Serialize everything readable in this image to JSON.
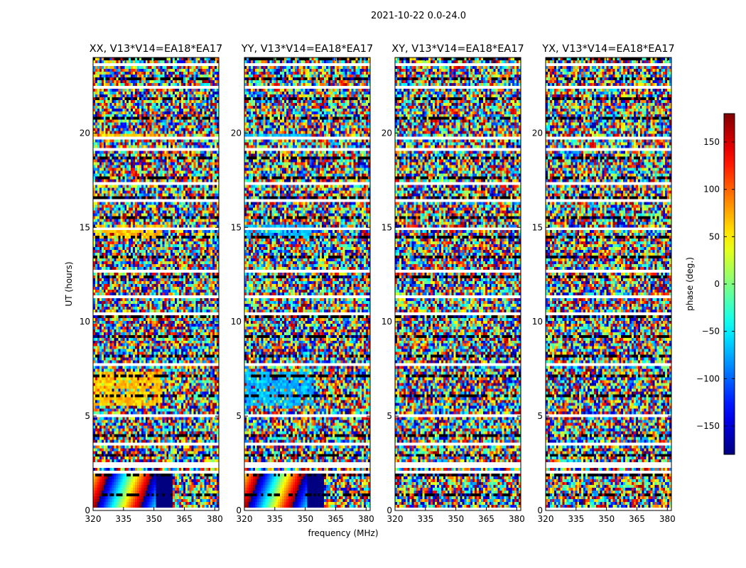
{
  "chart_data": {
    "type": "heatmap",
    "suptitle": "2021-10-22 0.0-24.0",
    "xlabel": "frequency (MHz)",
    "ylabel": "UT (hours)",
    "xlim": [
      320,
      382
    ],
    "ylim": [
      0,
      24
    ],
    "x_ticks": [
      "320",
      "335",
      "350",
      "365",
      "380"
    ],
    "x_tick_values": [
      320,
      335,
      350,
      365,
      380
    ],
    "y_ticks": [
      "0",
      "5",
      "10",
      "15",
      "20"
    ],
    "y_tick_values": [
      0,
      5,
      10,
      15,
      20
    ],
    "panels": [
      {
        "title": "XX, V13*V14=EA18*EA17",
        "polarization": "XX"
      },
      {
        "title": "YY, V13*V14=EA18*EA17",
        "polarization": "YY"
      },
      {
        "title": "XY, V13*V14=EA18*EA17",
        "polarization": "XY"
      },
      {
        "title": "YX, V13*V14=EA18*EA17",
        "polarization": "YX"
      }
    ],
    "colorbar": {
      "label": "phase (deg.)",
      "range": [
        -180,
        180
      ],
      "ticks": [
        "150",
        "100",
        "50",
        "0",
        "−50",
        "−100",
        "−150"
      ],
      "tick_values": [
        150,
        100,
        50,
        0,
        -50,
        -100,
        -150
      ],
      "colormap": "jet"
    },
    "flagged_intervals_hours": [
      [
        0.05,
        0.15
      ],
      [
        1.9,
        2.05
      ],
      [
        2.3,
        2.55
      ],
      [
        3.45,
        3.6
      ],
      [
        4.9,
        5.05
      ],
      [
        7.65,
        7.8
      ],
      [
        8.95,
        9.05
      ],
      [
        9.55,
        9.65
      ],
      [
        10.4,
        10.5
      ],
      [
        11.25,
        11.35
      ],
      [
        12.65,
        12.75
      ],
      [
        14.05,
        14.15
      ],
      [
        14.9,
        15.0
      ],
      [
        15.55,
        15.65
      ],
      [
        16.35,
        16.45
      ],
      [
        17.3,
        17.45
      ],
      [
        18.25,
        18.35
      ],
      [
        19.1,
        19.2
      ],
      [
        19.7,
        19.85
      ],
      [
        20.95,
        21.05
      ],
      [
        21.7,
        21.8
      ],
      [
        22.4,
        22.5
      ],
      [
        23.05,
        23.15
      ],
      [
        23.55,
        23.65
      ]
    ]
  }
}
